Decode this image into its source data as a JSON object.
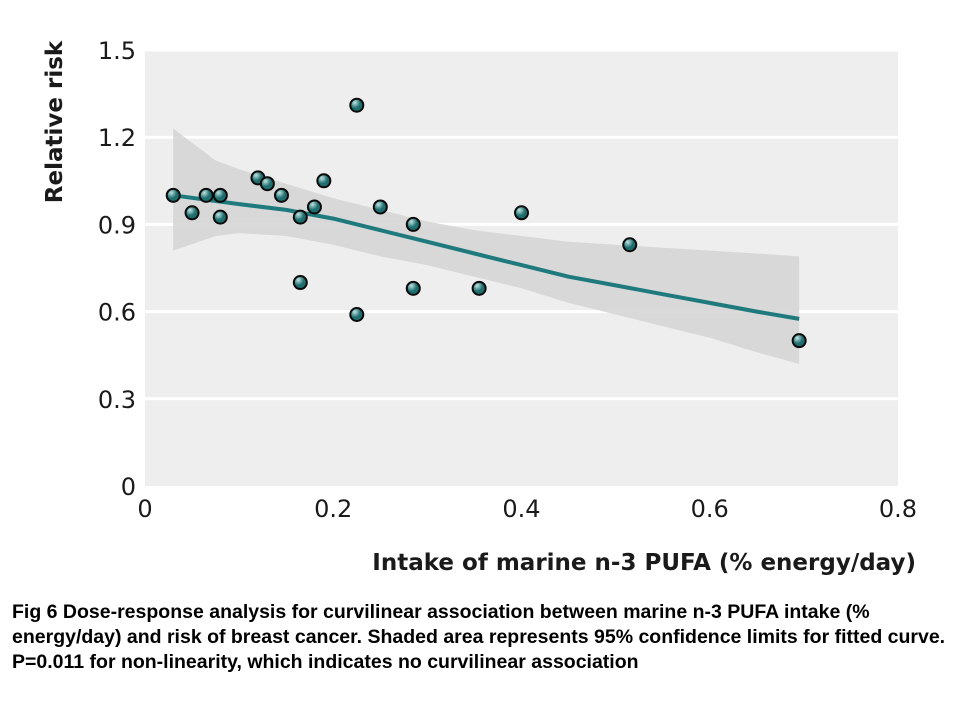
{
  "colors": {
    "plot_bg": "#eeeeee",
    "band": "#d3d3d3",
    "curve": "#1f7a7d",
    "point_fill": "#1f6e6f",
    "point_highlight": "#bfe4e2",
    "point_stroke": "#0a0a0a",
    "grid": "#ffffff"
  },
  "chart_data": {
    "type": "scatter",
    "xlabel": "Intake of marine n-3 PUFA (% energy/day)",
    "ylabel": "Relative risk",
    "xlim": [
      0,
      0.8
    ],
    "ylim": [
      0,
      1.5
    ],
    "x_ticks": [
      {
        "value": 0,
        "label": "0"
      },
      {
        "value": 0.2,
        "label": "0.2"
      },
      {
        "value": 0.4,
        "label": "0.4"
      },
      {
        "value": 0.6,
        "label": "0.6"
      },
      {
        "value": 0.8,
        "label": "0.8"
      }
    ],
    "y_ticks": [
      {
        "value": 0,
        "label": "0"
      },
      {
        "value": 0.3,
        "label": "0.3"
      },
      {
        "value": 0.6,
        "label": "0.6"
      },
      {
        "value": 0.9,
        "label": "0.9"
      },
      {
        "value": 1.2,
        "label": "1.2"
      },
      {
        "value": 1.5,
        "label": "1.5"
      }
    ],
    "grid": "horizontal",
    "points": [
      {
        "x": 0.03,
        "y": 1.0
      },
      {
        "x": 0.05,
        "y": 0.94
      },
      {
        "x": 0.065,
        "y": 1.0
      },
      {
        "x": 0.08,
        "y": 1.0
      },
      {
        "x": 0.08,
        "y": 0.925
      },
      {
        "x": 0.12,
        "y": 1.06
      },
      {
        "x": 0.13,
        "y": 1.04
      },
      {
        "x": 0.145,
        "y": 1.0
      },
      {
        "x": 0.165,
        "y": 0.925
      },
      {
        "x": 0.165,
        "y": 0.7
      },
      {
        "x": 0.18,
        "y": 0.96
      },
      {
        "x": 0.19,
        "y": 1.05
      },
      {
        "x": 0.225,
        "y": 1.31
      },
      {
        "x": 0.225,
        "y": 0.59
      },
      {
        "x": 0.25,
        "y": 0.96
      },
      {
        "x": 0.285,
        "y": 0.9
      },
      {
        "x": 0.285,
        "y": 0.68
      },
      {
        "x": 0.355,
        "y": 0.68
      },
      {
        "x": 0.4,
        "y": 0.94
      },
      {
        "x": 0.515,
        "y": 0.83
      },
      {
        "x": 0.695,
        "y": 0.5
      }
    ],
    "fitted_curve": {
      "x": [
        0.03,
        0.1,
        0.15,
        0.2,
        0.25,
        0.3,
        0.35,
        0.4,
        0.45,
        0.5,
        0.55,
        0.6,
        0.65,
        0.695
      ],
      "y": [
        1.0,
        0.97,
        0.95,
        0.92,
        0.88,
        0.84,
        0.8,
        0.76,
        0.72,
        0.69,
        0.66,
        0.63,
        0.6,
        0.575
      ]
    },
    "confidence_band": {
      "x": [
        0.03,
        0.075,
        0.1,
        0.15,
        0.2,
        0.25,
        0.3,
        0.35,
        0.4,
        0.45,
        0.5,
        0.55,
        0.6,
        0.65,
        0.695
      ],
      "upper": [
        1.23,
        1.12,
        1.09,
        1.04,
        0.99,
        0.95,
        0.91,
        0.88,
        0.86,
        0.84,
        0.83,
        0.82,
        0.81,
        0.8,
        0.79
      ],
      "lower": [
        0.81,
        0.86,
        0.87,
        0.86,
        0.83,
        0.79,
        0.76,
        0.72,
        0.68,
        0.63,
        0.59,
        0.55,
        0.51,
        0.46,
        0.42
      ]
    }
  },
  "caption": "Fig 6 Dose-response analysis for curvilinear association between marine n-3 PUFA intake (% energy/day) and risk of breast cancer. Shaded area represents 95% confidence limits for fitted curve. P=0.011 for non-linearity, which indicates no curvilinear association"
}
